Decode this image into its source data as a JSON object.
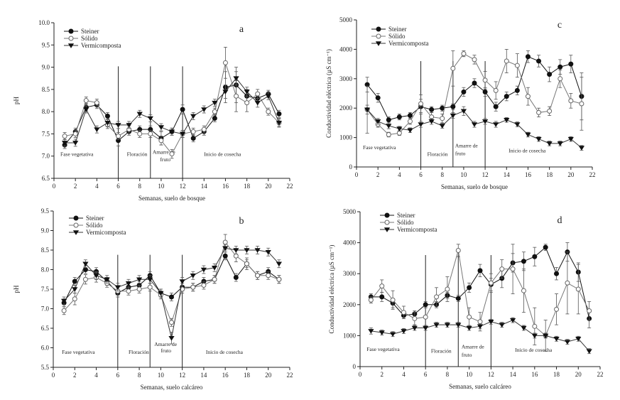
{
  "colors": {
    "ink": "#222222",
    "steiner": "#111111",
    "solido": "#777777",
    "vermi": "#333333"
  },
  "chart_data": [
    {
      "panel": "a",
      "type": "line",
      "xlabel": "Semanas, suelo de bosque",
      "ylabel": "pH",
      "xlim": [
        0,
        22
      ],
      "ylim": [
        6.5,
        10.0
      ],
      "xticks": [
        0,
        2,
        4,
        6,
        8,
        10,
        12,
        14,
        16,
        18,
        20,
        22
      ],
      "yticks": [
        6.5,
        7.0,
        7.5,
        8.0,
        8.5,
        9.0,
        9.5,
        10.0
      ],
      "phase_lines": [
        6,
        9,
        12
      ],
      "phases": [
        {
          "label": "Fase vegetativa",
          "x": 0.6,
          "y": 7.0
        },
        {
          "label": "Floración",
          "x": 6.8,
          "y": 7.0
        },
        {
          "label": "Amarre de",
          "x": 9.2,
          "y": 7.05
        },
        {
          "label": "fruto",
          "x": 9.9,
          "y": 6.88
        },
        {
          "label": "Inicio de cosecha",
          "x": 14.0,
          "y": 7.0
        }
      ],
      "x": [
        1,
        2,
        3,
        4,
        5,
        6,
        7,
        8,
        9,
        10,
        11,
        12,
        13,
        14,
        15,
        16,
        17,
        18,
        19,
        20,
        21
      ],
      "series": [
        {
          "name": "Steiner",
          "marker": "filled-circle",
          "values": [
            7.25,
            7.55,
            8.1,
            8.15,
            7.9,
            7.35,
            7.55,
            7.6,
            7.6,
            7.4,
            7.55,
            8.05,
            7.4,
            7.55,
            7.85,
            8.55,
            8.6,
            8.35,
            8.3,
            8.4,
            7.95
          ],
          "errors": [
            0.08,
            0.08,
            0.08,
            0.08,
            0.08,
            0.12,
            0.08,
            0.08,
            0.08,
            0.15,
            0.08,
            0.1,
            0.08,
            0.08,
            0.08,
            0.35,
            0.4,
            0.15,
            0.1,
            0.08,
            0.08
          ]
        },
        {
          "name": "Sólido",
          "marker": "open-circle",
          "values": [
            7.45,
            7.5,
            8.25,
            8.2,
            7.7,
            7.45,
            7.6,
            7.5,
            7.5,
            7.35,
            7.05,
            7.5,
            7.55,
            7.6,
            8.0,
            9.1,
            8.35,
            8.2,
            8.4,
            8.0,
            7.75
          ],
          "errors": [
            0.08,
            0.08,
            0.08,
            0.08,
            0.08,
            0.08,
            0.08,
            0.08,
            0.08,
            0.1,
            0.1,
            0.08,
            0.08,
            0.08,
            0.08,
            0.35,
            0.35,
            0.2,
            0.1,
            0.08,
            0.08
          ]
        },
        {
          "name": "Vermicomposta",
          "marker": "filled-triangle-down",
          "values": [
            7.3,
            7.3,
            8.05,
            7.6,
            7.75,
            7.7,
            7.7,
            7.95,
            7.85,
            7.65,
            7.55,
            7.5,
            7.9,
            8.05,
            8.2,
            8.45,
            8.75,
            8.45,
            8.2,
            8.35,
            7.75
          ],
          "errors": [
            0.08,
            0.08,
            0.08,
            0.08,
            0.08,
            0.08,
            0.08,
            0.08,
            0.08,
            0.08,
            0.08,
            0.08,
            0.08,
            0.08,
            0.08,
            0.15,
            0.15,
            0.1,
            0.1,
            0.08,
            0.1
          ]
        }
      ]
    },
    {
      "panel": "c",
      "type": "line",
      "xlabel": "Semanas, suelo de bosque",
      "ylabel": "Conductividad eléctrica  (µS cm⁻¹)",
      "xlim": [
        0,
        22
      ],
      "ylim": [
        0,
        5000
      ],
      "xticks": [
        0,
        2,
        4,
        6,
        8,
        10,
        12,
        14,
        16,
        18,
        20,
        22
      ],
      "yticks": [
        0,
        1000,
        2000,
        3000,
        4000,
        5000
      ],
      "phase_lines": [
        6,
        9,
        12
      ],
      "phases": [
        {
          "label": "Fase vegetativa",
          "x": 0.6,
          "y": 600
        },
        {
          "label": "Floración",
          "x": 6.6,
          "y": 380
        },
        {
          "label": "Amarre de",
          "x": 9.2,
          "y": 660
        },
        {
          "label": "fruto",
          "x": 9.2,
          "y": 400
        },
        {
          "label": "Inicio de cosecha",
          "x": 14.2,
          "y": 500
        }
      ],
      "x": [
        1,
        2,
        3,
        4,
        5,
        6,
        7,
        8,
        9,
        10,
        11,
        12,
        13,
        14,
        15,
        16,
        17,
        18,
        19,
        20,
        21
      ],
      "series": [
        {
          "name": "Steiner",
          "marker": "filled-circle",
          "values": [
            2800,
            2350,
            1600,
            1700,
            1750,
            2050,
            1950,
            2000,
            2050,
            2550,
            2850,
            2550,
            2050,
            2400,
            2600,
            3750,
            3600,
            3150,
            3400,
            3500,
            2400
          ],
          "errors": [
            250,
            150,
            100,
            100,
            100,
            250,
            100,
            100,
            100,
            150,
            150,
            150,
            150,
            150,
            150,
            200,
            200,
            250,
            250,
            300,
            800
          ]
        },
        {
          "name": "Sólido",
          "marker": "open-circle",
          "values": [
            1950,
            1450,
            1100,
            1150,
            1550,
            2150,
            1700,
            1650,
            3350,
            3850,
            3650,
            2950,
            2600,
            3600,
            3450,
            2400,
            1850,
            1900,
            3000,
            2250,
            2150
          ],
          "errors": [
            150,
            100,
            80,
            80,
            100,
            300,
            150,
            150,
            600,
            100,
            150,
            300,
            300,
            400,
            400,
            300,
            150,
            150,
            300,
            250,
            900
          ]
        },
        {
          "name": "Vermicomposta",
          "marker": "filled-triangle-down",
          "values": [
            1950,
            1550,
            1400,
            1300,
            1250,
            1450,
            1550,
            1400,
            1750,
            1900,
            1450,
            1550,
            1450,
            1600,
            1450,
            1100,
            950,
            800,
            800,
            950,
            650
          ],
          "errors": [
            800,
            100,
            100,
            80,
            80,
            100,
            100,
            80,
            100,
            150,
            100,
            100,
            100,
            80,
            80,
            80,
            80,
            80,
            80,
            80,
            80
          ]
        }
      ]
    },
    {
      "panel": "b",
      "type": "line",
      "xlabel": "Semanas, suelo calcáreo",
      "ylabel": "pH",
      "xlim": [
        0,
        22
      ],
      "ylim": [
        5.5,
        9.5
      ],
      "xticks": [
        0,
        2,
        4,
        6,
        8,
        10,
        12,
        14,
        16,
        18,
        20,
        22
      ],
      "yticks": [
        5.5,
        6.0,
        6.5,
        7.0,
        7.5,
        8.0,
        8.5,
        9.0,
        9.5
      ],
      "phase_lines": [
        6,
        9,
        12
      ],
      "phases": [
        {
          "label": "Fase vegetativa",
          "x": 0.8,
          "y": 5.85
        },
        {
          "label": "Floración",
          "x": 7.0,
          "y": 5.85
        },
        {
          "label": "Amarre de",
          "x": 9.4,
          "y": 6.05
        },
        {
          "label": "fruto",
          "x": 10.0,
          "y": 5.88
        },
        {
          "label": "Inicio de cosecha",
          "x": 14.2,
          "y": 5.85
        }
      ],
      "x": [
        1,
        2,
        3,
        4,
        5,
        6,
        7,
        8,
        9,
        10,
        11,
        12,
        13,
        14,
        15,
        16,
        17,
        18,
        19,
        20,
        21
      ],
      "series": [
        {
          "name": "Steiner",
          "marker": "filled-circle",
          "values": [
            7.15,
            7.7,
            8.0,
            7.95,
            7.7,
            7.4,
            7.55,
            7.6,
            7.85,
            7.4,
            7.3,
            7.55,
            7.55,
            7.7,
            7.75,
            8.35,
            7.8,
            8.15,
            7.85,
            7.95,
            7.75
          ],
          "errors": [
            0.1,
            0.1,
            0.1,
            0.1,
            0.1,
            0.1,
            0.1,
            0.1,
            0.1,
            0.1,
            0.1,
            0.1,
            0.1,
            0.1,
            0.1,
            0.1,
            0.1,
            0.1,
            0.1,
            0.1,
            0.1
          ]
        },
        {
          "name": "Sólido",
          "marker": "open-circle",
          "values": [
            6.95,
            7.25,
            7.75,
            7.8,
            7.65,
            7.45,
            7.45,
            7.5,
            7.55,
            7.35,
            6.65,
            7.5,
            7.55,
            7.6,
            7.75,
            8.7,
            8.35,
            8.15,
            7.85,
            7.85,
            7.75
          ],
          "errors": [
            0.1,
            0.15,
            0.12,
            0.12,
            0.1,
            0.1,
            0.1,
            0.1,
            0.1,
            0.1,
            0.1,
            0.1,
            0.1,
            0.1,
            0.1,
            0.2,
            0.15,
            0.15,
            0.1,
            0.1,
            0.1
          ]
        },
        {
          "name": "Vermicomposta",
          "marker": "filled-triangle-down",
          "values": [
            7.2,
            7.5,
            8.15,
            7.85,
            7.75,
            7.55,
            7.65,
            7.75,
            7.75,
            7.4,
            6.25,
            7.7,
            7.85,
            8.0,
            8.05,
            8.55,
            8.5,
            8.5,
            8.5,
            8.45,
            8.15
          ],
          "errors": [
            0.1,
            0.1,
            0.1,
            0.1,
            0.1,
            0.1,
            0.1,
            0.1,
            0.1,
            0.1,
            0.15,
            0.1,
            0.1,
            0.1,
            0.1,
            0.1,
            0.1,
            0.1,
            0.1,
            0.1,
            0.1
          ]
        }
      ]
    },
    {
      "panel": "d",
      "type": "line",
      "xlabel": "Semanas, suelo calcáreo",
      "ylabel": "Conductividad eléctrica  (µS cm⁻¹)",
      "xlim": [
        0,
        22
      ],
      "ylim": [
        0,
        5000
      ],
      "xticks": [
        0,
        2,
        4,
        6,
        8,
        10,
        12,
        14,
        16,
        18,
        20,
        22
      ],
      "yticks": [
        0,
        1000,
        2000,
        3000,
        4000,
        5000
      ],
      "phase_lines": [
        6,
        9,
        12
      ],
      "phases": [
        {
          "label": "Fase vegetativa",
          "x": 0.6,
          "y": 500
        },
        {
          "label": "Floración",
          "x": 6.5,
          "y": 450
        },
        {
          "label": "Amarre de",
          "x": 9.3,
          "y": 580
        },
        {
          "label": "fruto",
          "x": 9.3,
          "y": 320
        },
        {
          "label": "Inicio de cosecha",
          "x": 14.2,
          "y": 480
        }
      ],
      "x": [
        1,
        2,
        3,
        4,
        5,
        6,
        7,
        8,
        9,
        10,
        11,
        12,
        13,
        14,
        15,
        16,
        17,
        18,
        19,
        20,
        21
      ],
      "series": [
        {
          "name": "Steiner",
          "marker": "filled-circle",
          "values": [
            2250,
            2250,
            2050,
            1650,
            1700,
            2000,
            2000,
            2300,
            2200,
            2550,
            3100,
            2650,
            2850,
            3350,
            3400,
            3550,
            3850,
            3000,
            3700,
            3050,
            1550
          ],
          "errors": [
            100,
            150,
            150,
            100,
            100,
            100,
            100,
            100,
            100,
            150,
            200,
            200,
            300,
            300,
            300,
            300,
            100,
            200,
            300,
            300,
            300
          ]
        },
        {
          "name": "Sólido",
          "marker": "open-circle",
          "values": [
            2150,
            2600,
            2150,
            1750,
            1550,
            1600,
            2250,
            2500,
            3750,
            1600,
            1450,
            2700,
            3150,
            3150,
            2450,
            1300,
            1000,
            1850,
            2700,
            2500,
            1800
          ],
          "errors": [
            100,
            200,
            300,
            200,
            200,
            300,
            300,
            400,
            200,
            300,
            300,
            300,
            300,
            800,
            700,
            600,
            500,
            500,
            1000,
            800,
            300
          ]
        },
        {
          "name": "Vermicomposta",
          "marker": "filled-triangle-down",
          "values": [
            1150,
            1100,
            1050,
            1150,
            1250,
            1250,
            1350,
            1350,
            1350,
            1250,
            1300,
            1450,
            1350,
            1500,
            1250,
            1000,
            1000,
            900,
            800,
            900,
            500
          ],
          "errors": [
            100,
            80,
            80,
            80,
            80,
            80,
            80,
            80,
            80,
            80,
            80,
            80,
            80,
            80,
            80,
            80,
            80,
            80,
            80,
            80,
            80
          ]
        }
      ]
    }
  ]
}
